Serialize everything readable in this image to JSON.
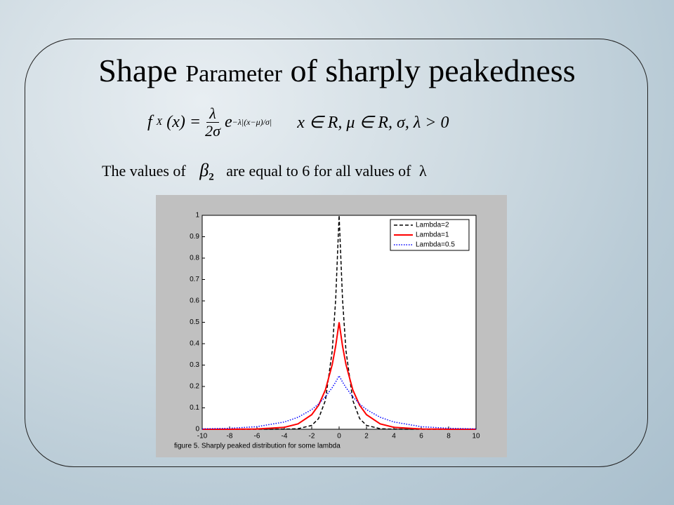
{
  "slide": {
    "title": {
      "big": "Shape",
      "small": "Parameter",
      "rest": "of sharply peakedness"
    },
    "formula": {
      "lhs": "f",
      "sub": "X",
      "arg": "(x) =",
      "num": "λ",
      "den": "2σ",
      "exp_base": "e",
      "exponent": "−λ|(x−μ)/σ|",
      "conditions": "x ∈ R,  μ ∈ R,   σ, λ > 0"
    },
    "sentence": {
      "before": "The values of",
      "symbol": "β",
      "symbol_sub": "2",
      "after": "are equal to 6 for all values of",
      "end_symbol": "λ"
    }
  },
  "chart_data": {
    "type": "line",
    "caption": "figure 5.    Sharply peaked distribution for some lambda",
    "x": [
      -10,
      -8,
      -6,
      -4,
      -3,
      -2,
      -1.5,
      -1,
      -0.5,
      -0.25,
      0,
      0.25,
      0.5,
      1,
      1.5,
      2,
      3,
      4,
      6,
      8,
      10
    ],
    "series": [
      {
        "name": "Lambda=2",
        "color": "#000000",
        "style": "dashed",
        "values": [
          0,
          0,
          0,
          0.0003,
          0.0025,
          0.018,
          0.05,
          0.135,
          0.368,
          0.607,
          1,
          0.607,
          0.368,
          0.135,
          0.05,
          0.018,
          0.0025,
          0.0003,
          0,
          0,
          0
        ]
      },
      {
        "name": "Lambda=1",
        "color": "#ff0000",
        "style": "solid",
        "values": [
          0,
          0.0002,
          0.0012,
          0.009,
          0.025,
          0.068,
          0.112,
          0.184,
          0.303,
          0.389,
          0.5,
          0.389,
          0.303,
          0.184,
          0.112,
          0.068,
          0.025,
          0.009,
          0.0012,
          0.0002,
          0
        ]
      },
      {
        "name": "Lambda=0.5",
        "color": "#0000ff",
        "style": "dotted",
        "values": [
          0.0017,
          0.0046,
          0.012,
          0.034,
          0.056,
          0.092,
          0.118,
          0.152,
          0.195,
          0.221,
          0.25,
          0.221,
          0.195,
          0.152,
          0.118,
          0.092,
          0.056,
          0.034,
          0.012,
          0.0046,
          0.0017
        ]
      }
    ],
    "xlim": [
      -10,
      10
    ],
    "xticks": [
      -10,
      -8,
      -6,
      -4,
      -2,
      0,
      2,
      4,
      6,
      8,
      10
    ],
    "ylim": [
      0,
      1
    ],
    "yticks": [
      0,
      0.1,
      0.2,
      0.3,
      0.4,
      0.5,
      0.6,
      0.7,
      0.8,
      0.9,
      1
    ],
    "legend": "upper right"
  }
}
